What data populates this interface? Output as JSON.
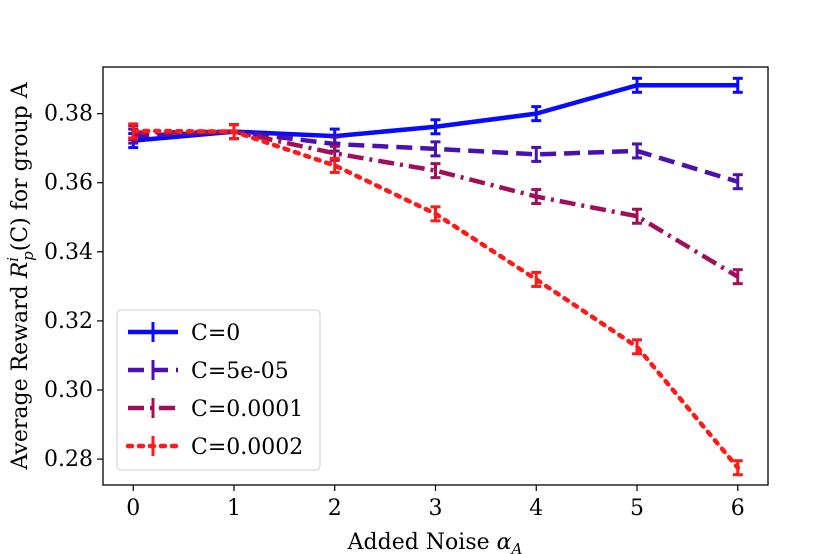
{
  "chart_data": {
    "type": "line",
    "title": "",
    "xlabel": "Added Noise",
    "xlabel_symbol": "α",
    "xlabel_subscript": "A",
    "ylabel_prefix": "Average Reward",
    "ylabel_symbol_base": "R",
    "ylabel_symbol_sup": "i",
    "ylabel_symbol_sub": "p",
    "ylabel_symbol_arg": "(C)",
    "ylabel_suffix": "for group A",
    "xlim": [
      -0.3,
      6.3
    ],
    "ylim": [
      0.2725,
      0.3935
    ],
    "x": [
      0,
      1,
      2,
      3,
      4,
      5,
      6
    ],
    "xticks": [
      "0",
      "1",
      "2",
      "3",
      "4",
      "5",
      "6"
    ],
    "yticks": [
      0.28,
      0.3,
      0.32,
      0.34,
      0.36,
      0.38
    ],
    "ytick_labels": [
      "0.28",
      "0.30",
      "0.32",
      "0.34",
      "0.36",
      "0.38"
    ],
    "legend_position": "lower-left",
    "series": [
      {
        "name": "C=0",
        "color": "#0a0aff",
        "dash": "solid",
        "values": [
          0.3722,
          0.3748,
          0.3735,
          0.3762,
          0.38,
          0.3882,
          0.3882
        ]
      },
      {
        "name": "C=5e-05",
        "color": "#4a10b0",
        "dash": "dashed",
        "values": [
          0.3735,
          0.3748,
          0.3712,
          0.3698,
          0.3682,
          0.3692,
          0.3603
        ]
      },
      {
        "name": "C=0.0001",
        "color": "#a0105a",
        "dash": "dashdot",
        "values": [
          0.3745,
          0.3748,
          0.3685,
          0.3635,
          0.356,
          0.3503,
          0.3328
        ]
      },
      {
        "name": "C=0.0002",
        "color": "#ff1a1a",
        "dash": "dotted",
        "values": [
          0.375,
          0.3748,
          0.365,
          0.351,
          0.332,
          0.3125,
          0.2775
        ]
      }
    ]
  }
}
